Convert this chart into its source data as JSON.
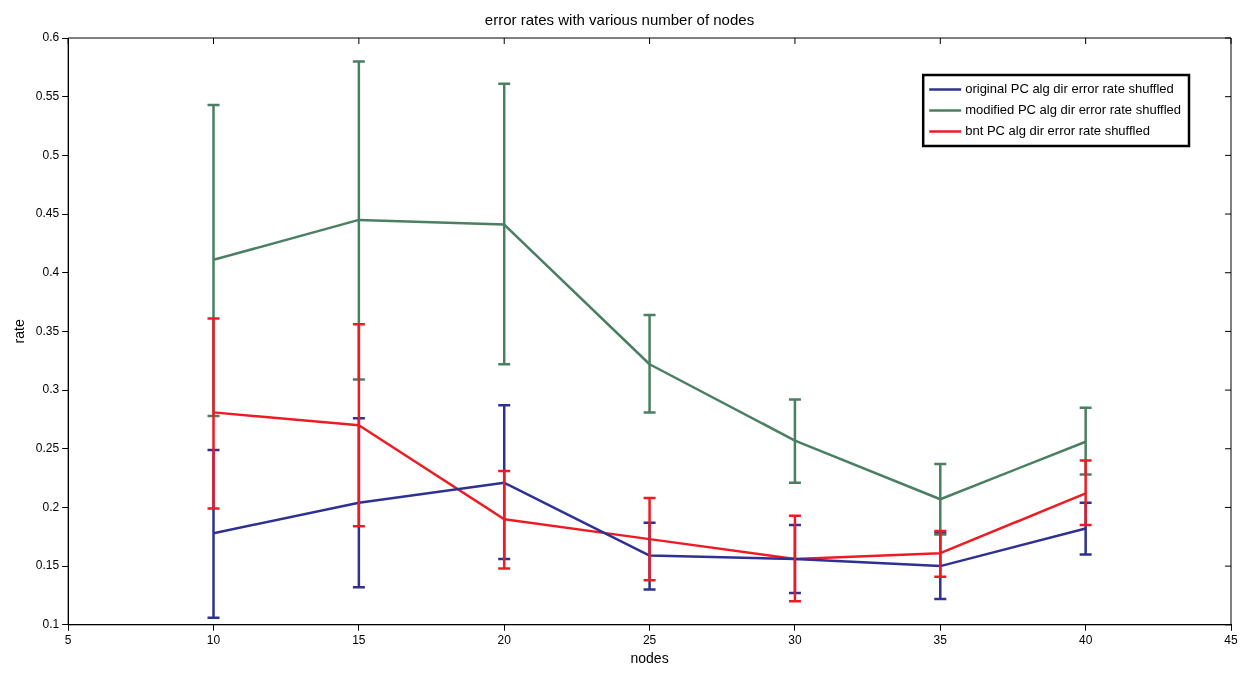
{
  "chart_data": {
    "type": "line",
    "title": "error rates with various number of nodes",
    "xlabel": "nodes",
    "ylabel": "rate",
    "x": [
      10,
      15,
      20,
      25,
      30,
      35,
      40
    ],
    "xlim": [
      5,
      45
    ],
    "xticks": [
      5,
      10,
      15,
      20,
      25,
      30,
      35,
      40,
      45
    ],
    "ylim": [
      0.1,
      0.6
    ],
    "yticks": [
      0.1,
      0.15,
      0.2,
      0.25,
      0.3,
      0.35,
      0.4,
      0.45,
      0.5,
      0.55,
      0.6
    ],
    "grid": false,
    "legend": "top right",
    "marker": "none",
    "line_style": "solid",
    "series": [
      {
        "name": "original PC alg dir error rate shuffled",
        "color": "#2e3192",
        "values": [
          0.178,
          0.204,
          0.221,
          0.159,
          0.156,
          0.15,
          0.182
        ],
        "errors": [
          [
            0.106,
            0.249
          ],
          [
            0.132,
            0.276
          ],
          [
            0.156,
            0.287
          ],
          [
            0.13,
            0.187
          ],
          [
            0.127,
            0.185
          ],
          [
            0.122,
            0.178
          ],
          [
            0.16,
            0.204
          ]
        ]
      },
      {
        "name": "modified PC alg dir error rate shuffled",
        "color": "#4a7f62",
        "values": [
          0.411,
          0.445,
          0.441,
          0.322,
          0.257,
          0.207,
          0.256
        ],
        "errors": [
          [
            0.278,
            0.543
          ],
          [
            0.309,
            0.58
          ],
          [
            0.322,
            0.561
          ],
          [
            0.281,
            0.364
          ],
          [
            0.221,
            0.292
          ],
          [
            0.177,
            0.237
          ],
          [
            0.228,
            0.285
          ]
        ]
      },
      {
        "name": "bnt PC alg dir error rate shuffled",
        "color": "#ed1c24",
        "values": [
          0.281,
          0.27,
          0.19,
          0.173,
          0.156,
          0.161,
          0.212
        ],
        "errors": [
          [
            0.199,
            0.361
          ],
          [
            0.184,
            0.356
          ],
          [
            0.148,
            0.231
          ],
          [
            0.138,
            0.208
          ],
          [
            0.12,
            0.193
          ],
          [
            0.141,
            0.18
          ],
          [
            0.185,
            0.24
          ]
        ]
      }
    ]
  }
}
